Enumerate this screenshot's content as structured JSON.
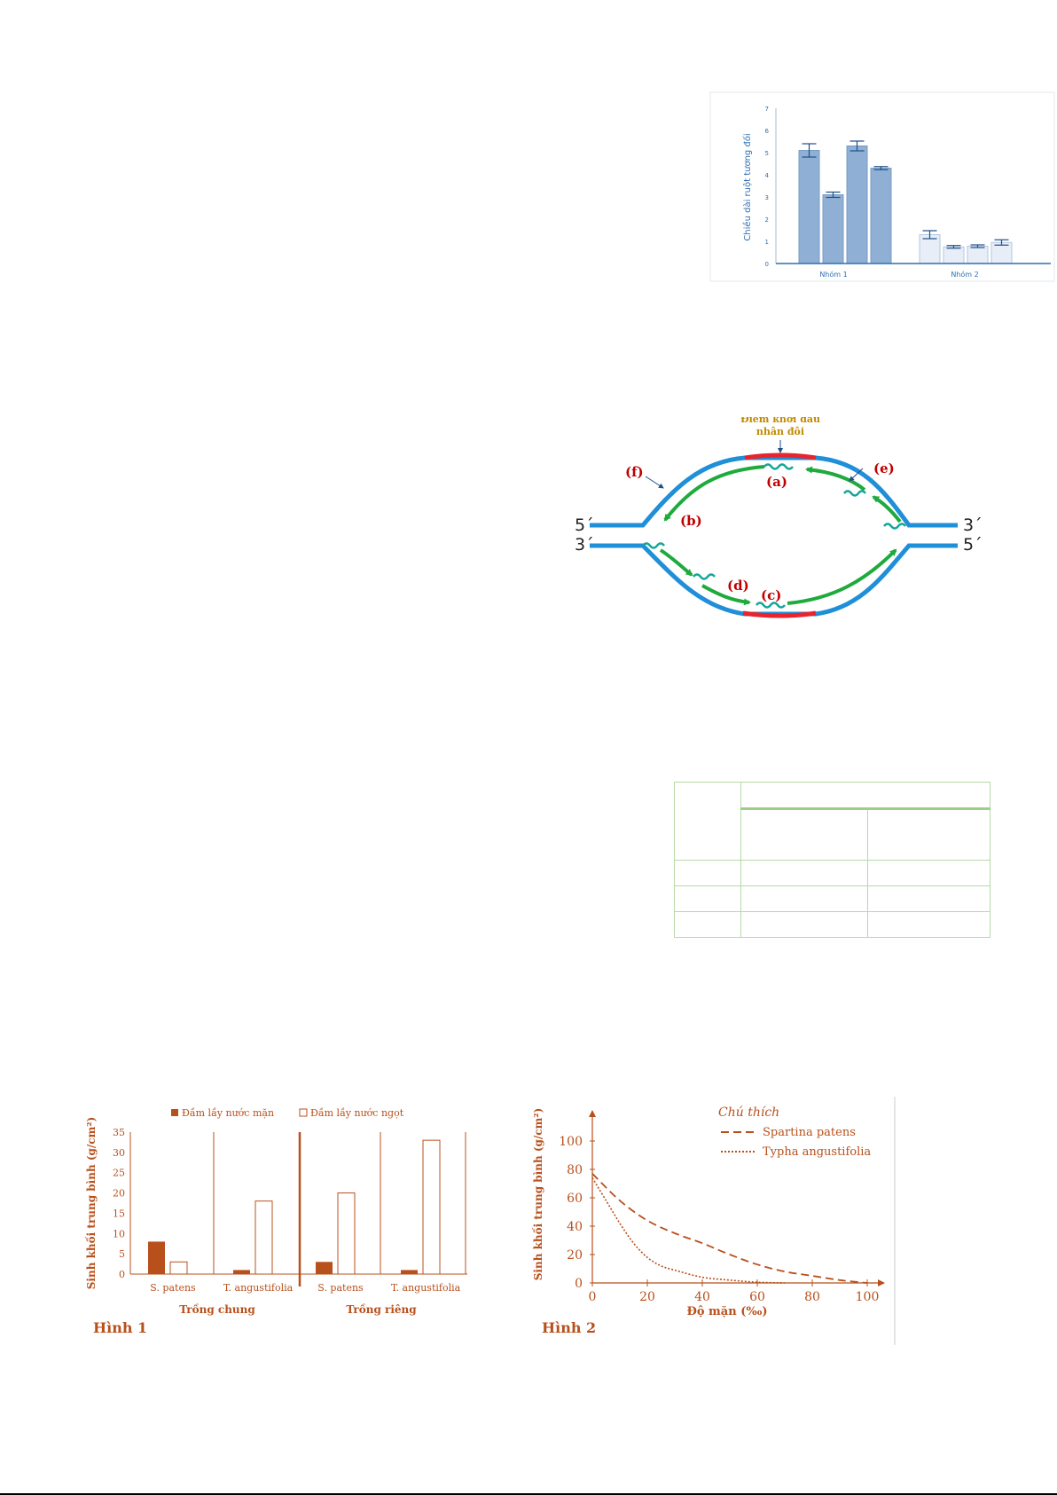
{
  "relative_length_chart": {
    "chart_data": {
      "type": "bar",
      "ylabel": "Chiều dài ruột tương đối",
      "ylim": [
        0,
        7
      ],
      "yticks": [
        "0",
        "1",
        "2",
        "3",
        "4",
        "5",
        "6",
        "7"
      ],
      "categories": [
        "Nhóm 1",
        "Nhóm 2"
      ],
      "groups": [
        {
          "name": "Nhóm 1",
          "values": [
            5.1,
            3.1,
            5.3,
            4.3
          ],
          "errors": [
            0.3,
            0.12,
            0.22,
            0.07
          ]
        },
        {
          "name": "Nhóm 2",
          "values": [
            1.3,
            0.75,
            0.78,
            0.95
          ],
          "errors": [
            0.18,
            0.06,
            0.06,
            0.12
          ]
        }
      ],
      "colors": {
        "group1": "#8fb0d4",
        "group2": "#e7eef8",
        "axis": "#2f6fb3",
        "error": "#1f4f87"
      }
    }
  },
  "replication_diagram": {
    "origin_label_line1": "Điểm khởi đầu",
    "origin_label_line2": "nhân đôi",
    "labels": {
      "a": "(a)",
      "b": "(b)",
      "c": "(c)",
      "d": "(d)",
      "e": "(e)",
      "f": "(f)"
    },
    "ends": {
      "top_left": "5´",
      "top_right": "3´",
      "bottom_left": "3´",
      "bottom_right": "5´"
    },
    "colors": {
      "strand": "#1f8fd8",
      "origin": "#e8242f",
      "new_strand": "#1faa3d",
      "label": "#c00000",
      "origin_text": "#c08a00"
    }
  },
  "hinh1": {
    "caption": "Hình 1",
    "chart_data": {
      "type": "bar",
      "ylabel": "Sinh khối trung bình (g/cm²)",
      "ylim": [
        0,
        35
      ],
      "yticks": [
        "0",
        "5",
        "10",
        "15",
        "20",
        "25",
        "30",
        "35"
      ],
      "legend": {
        "salt": "Đầm lầy nước mặn",
        "fresh": "Đầm lầy nước ngọt"
      },
      "sections": [
        {
          "name": "Trồng chung",
          "categories": [
            {
              "label": "S. patens",
              "salt": 8,
              "fresh": 3
            },
            {
              "label": "T. angustifolia",
              "salt": 1,
              "fresh": 18
            }
          ]
        },
        {
          "name": "Trồng riêng",
          "categories": [
            {
              "label": "S. patens",
              "salt": 3,
              "fresh": 20
            },
            {
              "label": "T. angustifolia",
              "salt": 1,
              "fresh": 33
            }
          ]
        }
      ],
      "colors": {
        "main": "#b8501c"
      }
    }
  },
  "hinh2": {
    "caption": "Hình 2",
    "chart_data": {
      "type": "line",
      "ylabel": "Sinh khối trung bình (g/cm²)",
      "xlabel": "Độ mặn (‰)",
      "xlim": [
        0,
        100
      ],
      "ylim": [
        0,
        100
      ],
      "xticks": [
        "0",
        "20",
        "40",
        "60",
        "80",
        "100"
      ],
      "yticks": [
        "0",
        "20",
        "40",
        "60",
        "80",
        "100"
      ],
      "legend_title": "Chú thích",
      "series": [
        {
          "name": "Spartina patens",
          "style": "dashed",
          "x": [
            0,
            10,
            20,
            30,
            40,
            50,
            60,
            70,
            80,
            90,
            100
          ],
          "y": [
            77,
            58,
            44,
            35,
            28,
            20,
            13,
            8,
            5,
            2,
            0
          ]
        },
        {
          "name": "Typha angustifolia",
          "style": "dotted",
          "x": [
            0,
            5,
            10,
            15,
            20,
            25,
            30,
            40,
            50,
            60,
            70
          ],
          "y": [
            74,
            58,
            42,
            28,
            18,
            12,
            9,
            4,
            2,
            0.5,
            0
          ]
        }
      ],
      "colors": {
        "main": "#b8501c"
      }
    }
  }
}
